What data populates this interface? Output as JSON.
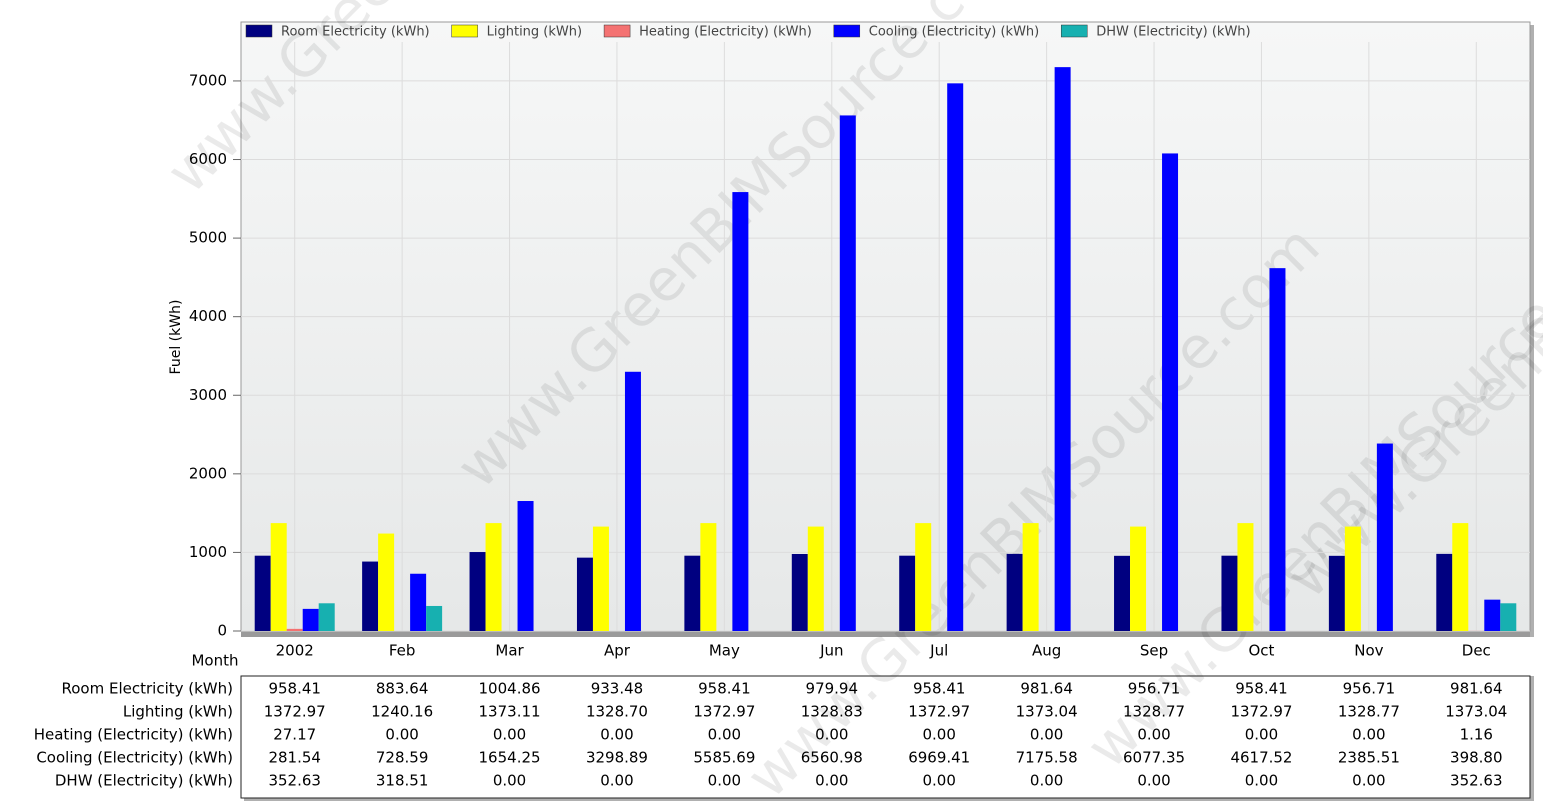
{
  "chart_data": {
    "type": "bar",
    "y_label": "Fuel (kWh)",
    "x_label": "Month",
    "watermark": "www.GreenBIMSource.com",
    "categories": [
      "2002",
      "Feb",
      "Mar",
      "Apr",
      "May",
      "Jun",
      "Jul",
      "Aug",
      "Sep",
      "Oct",
      "Nov",
      "Dec"
    ],
    "ylim": [
      0,
      7750
    ],
    "yticks": [
      0,
      1000,
      2000,
      3000,
      4000,
      5000,
      6000,
      7000
    ],
    "grid": true,
    "legend": "top",
    "series": [
      {
        "name": "Room Electricity (kWh)",
        "color": "#000080",
        "values": [
          958.41,
          883.64,
          1004.86,
          933.48,
          958.41,
          979.94,
          958.41,
          981.64,
          956.71,
          958.41,
          956.71,
          981.64
        ],
        "value_labels": [
          "958.41",
          "883.64",
          "1004.86",
          "933.48",
          "958.41",
          "979.94",
          "958.41",
          "981.64",
          "956.71",
          "958.41",
          "956.71",
          "981.64"
        ]
      },
      {
        "name": "Lighting (kWh)",
        "color": "#ffff00",
        "values": [
          1372.97,
          1240.16,
          1373.11,
          1328.7,
          1372.97,
          1328.83,
          1372.97,
          1373.04,
          1328.77,
          1372.97,
          1328.77,
          1373.04
        ],
        "value_labels": [
          "1372.97",
          "1240.16",
          "1373.11",
          "1328.70",
          "1372.97",
          "1328.83",
          "1372.97",
          "1373.04",
          "1328.77",
          "1372.97",
          "1328.77",
          "1373.04"
        ]
      },
      {
        "name": "Heating (Electricity) (kWh)",
        "color": "#f47272",
        "values": [
          27.17,
          0,
          0,
          0,
          0,
          0,
          0,
          0,
          0,
          0,
          0,
          1.16
        ],
        "value_labels": [
          "27.17",
          "0.00",
          "0.00",
          "0.00",
          "0.00",
          "0.00",
          "0.00",
          "0.00",
          "0.00",
          "0.00",
          "0.00",
          "1.16"
        ]
      },
      {
        "name": "Cooling (Electricity) (kWh)",
        "color": "#0000ff",
        "values": [
          281.54,
          728.59,
          1654.25,
          3298.89,
          5585.69,
          6560.98,
          6969.41,
          7175.58,
          6077.35,
          4617.52,
          2385.51,
          398.8
        ],
        "value_labels": [
          "281.54",
          "728.59",
          "1654.25",
          "3298.89",
          "5585.69",
          "6560.98",
          "6969.41",
          "7175.58",
          "6077.35",
          "4617.52",
          "2385.51",
          "398.80"
        ]
      },
      {
        "name": "DHW (Electricity) (kWh)",
        "color": "#17b0b0",
        "values": [
          352.63,
          318.51,
          0,
          0,
          0,
          0,
          0,
          0,
          0,
          0,
          0,
          352.63
        ],
        "value_labels": [
          "352.63",
          "318.51",
          "0.00",
          "0.00",
          "0.00",
          "0.00",
          "0.00",
          "0.00",
          "0.00",
          "0.00",
          "0.00",
          "352.63"
        ]
      }
    ]
  }
}
